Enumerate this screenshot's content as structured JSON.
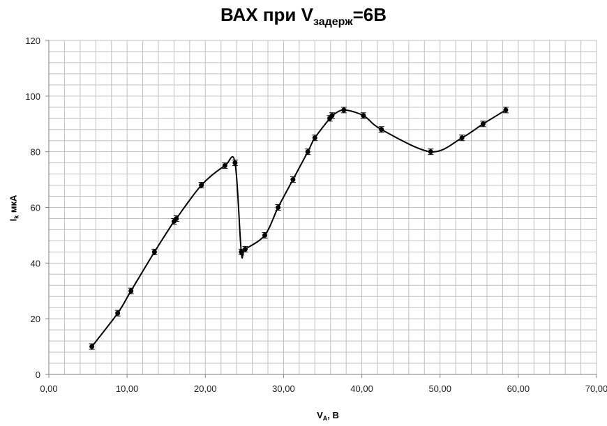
{
  "chart_data": {
    "type": "scatter",
    "title": {
      "main": "ВАХ при V",
      "sub": "задерж",
      "tail": "=6В"
    },
    "xlabel": {
      "main": "V",
      "sub": "A",
      "tail": ", В"
    },
    "ylabel": {
      "main": "I",
      "sub": "k",
      "tail": " мкА"
    },
    "xlim": [
      0,
      70
    ],
    "ylim": [
      0,
      120
    ],
    "x_ticks": [
      "0,00",
      "10,00",
      "20,00",
      "30,00",
      "40,00",
      "50,00",
      "60,00",
      "70,00"
    ],
    "y_ticks": [
      "0",
      "20",
      "40",
      "60",
      "80",
      "100",
      "120"
    ],
    "x_tick_values": [
      0,
      10,
      20,
      30,
      40,
      50,
      60,
      70
    ],
    "y_tick_values": [
      0,
      20,
      40,
      60,
      80,
      100,
      120
    ],
    "grid": true,
    "error_bar": 1,
    "series": [
      {
        "x": [
          5.5,
          8.8,
          10.5,
          13.5,
          16.0,
          16.3,
          19.5,
          22.5,
          23.8,
          24.6,
          25.1,
          27.6,
          29.3,
          31.2,
          33.1,
          34.0,
          35.9,
          36.2,
          37.7,
          40.2,
          42.5,
          48.8,
          52.8,
          55.5,
          58.4
        ],
        "y": [
          10,
          22,
          30,
          44,
          55,
          56,
          68,
          75,
          76,
          44,
          45,
          50,
          60,
          70,
          80,
          85,
          92,
          93,
          95,
          93,
          88,
          80,
          85,
          90,
          95
        ]
      }
    ],
    "colors": {
      "line": "#000000",
      "grid": "#c0c0c0",
      "axis": "#808080"
    }
  }
}
